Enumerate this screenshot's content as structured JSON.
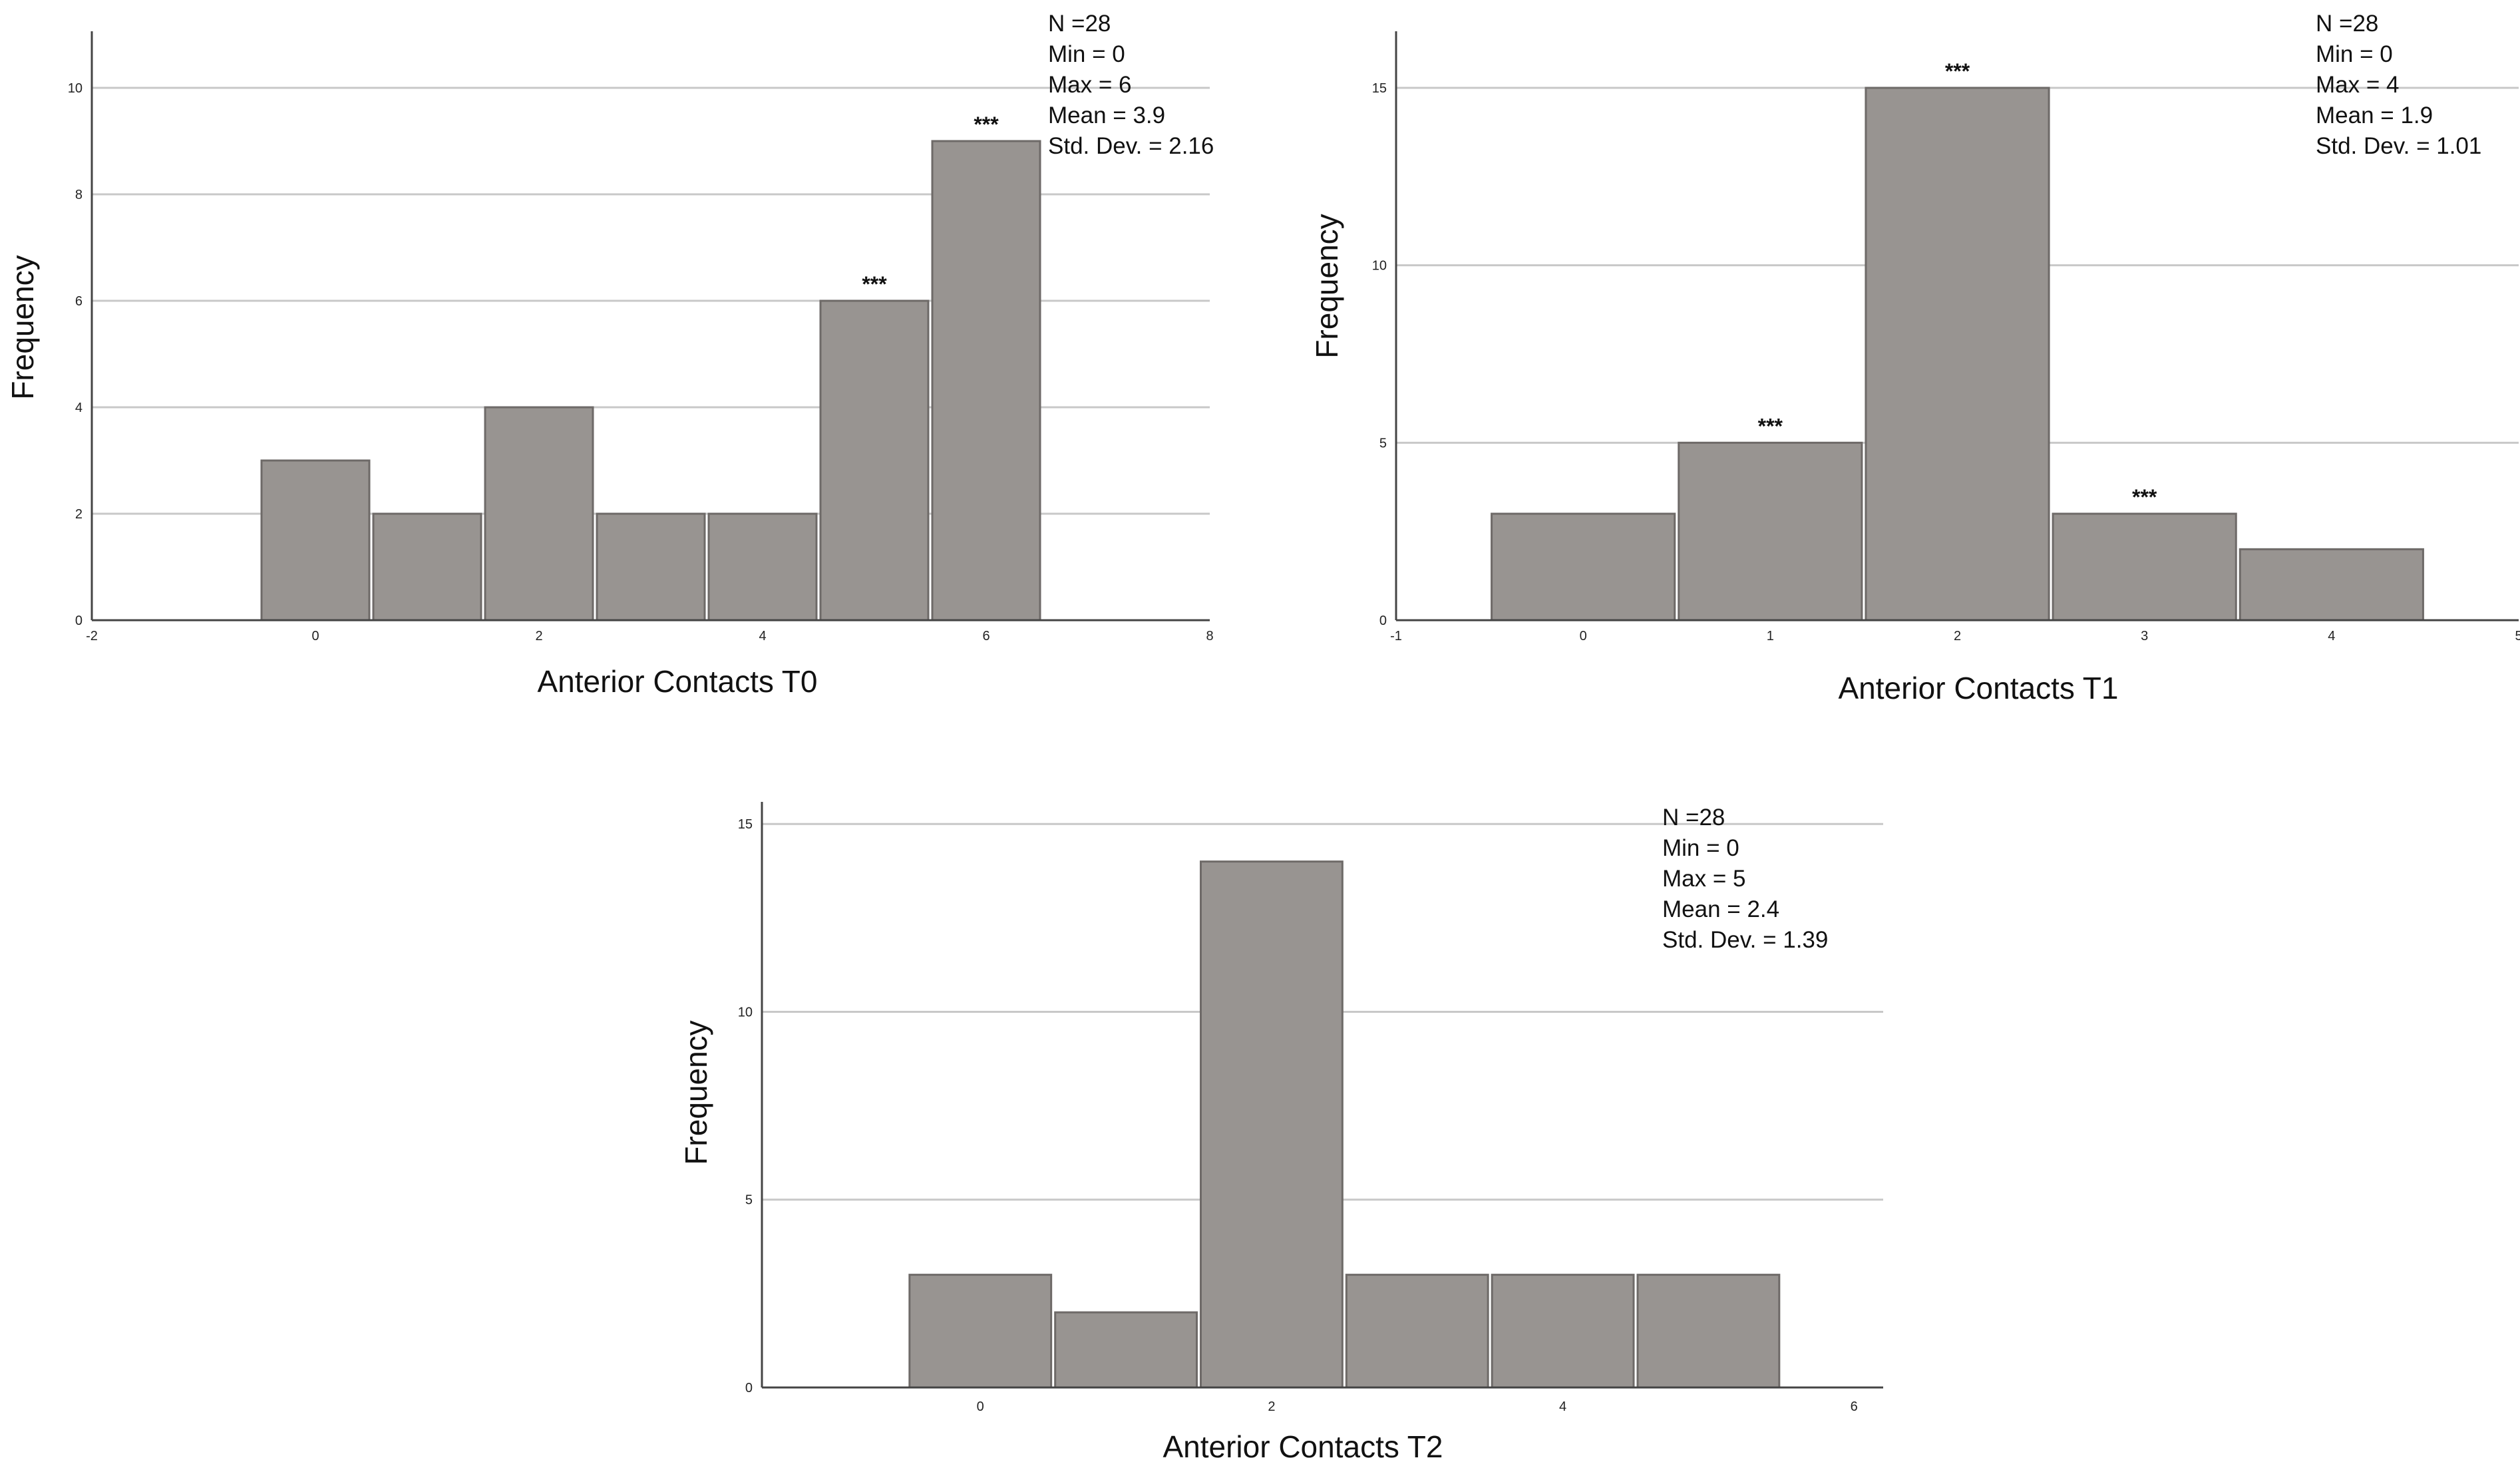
{
  "chart_data": [
    {
      "type": "bar",
      "xlabel": "Anterior Contacts T0",
      "ylabel": "Frequency",
      "xlim": [
        -2,
        8
      ],
      "xticks": [
        -2,
        0,
        2,
        4,
        6,
        8
      ],
      "ylim": [
        0,
        11
      ],
      "yticks": [
        0,
        2,
        4,
        6,
        8,
        10
      ],
      "grid": true,
      "categories": [
        0,
        1,
        2,
        3,
        4,
        5,
        6
      ],
      "values": [
        3,
        2,
        4,
        2,
        2,
        6,
        9
      ],
      "annotations": [
        {
          "category": 5,
          "text": "***"
        },
        {
          "category": 6,
          "text": "***"
        }
      ],
      "stats": [
        "N =28",
        "Min = 0",
        "Max = 6",
        "Mean = 3.9",
        "Std. Dev. = 2.16"
      ],
      "colors": {
        "bar": "#989491",
        "bar_edge": "#6e6a68",
        "grid": "#c8c8c8"
      }
    },
    {
      "type": "bar",
      "xlabel": "Anterior Contacts T1",
      "ylabel": "Frequency",
      "xlim": [
        -1,
        5
      ],
      "xticks": [
        -1,
        0,
        1,
        2,
        3,
        4,
        5
      ],
      "ylim": [
        0,
        16.5
      ],
      "yticks": [
        0,
        5,
        10,
        15
      ],
      "grid": true,
      "categories": [
        0,
        1,
        2,
        3,
        4
      ],
      "values": [
        3,
        5,
        15,
        3,
        2
      ],
      "annotations": [
        {
          "category": 1,
          "text": "***"
        },
        {
          "category": 2,
          "text": "***"
        },
        {
          "category": 3,
          "text": "***"
        }
      ],
      "stats": [
        "N =28",
        "Min = 0",
        "Max = 4",
        "Mean = 1.9",
        "Std. Dev. = 1.01"
      ],
      "colors": {
        "bar": "#989491",
        "bar_edge": "#6e6a68",
        "grid": "#c8c8c8"
      }
    },
    {
      "type": "bar",
      "xlabel": "Anterior Contacts T2",
      "ylabel": "Frequency",
      "xlim": [
        -1.5,
        6.2
      ],
      "xticks": [
        0,
        2,
        4,
        6
      ],
      "ylim": [
        0,
        15.5
      ],
      "yticks": [
        0,
        5,
        10,
        15
      ],
      "grid": true,
      "categories": [
        0,
        1,
        2,
        3,
        4,
        5
      ],
      "values": [
        3,
        2,
        14,
        3,
        3,
        3
      ],
      "annotations": [],
      "stats": [
        "N =28",
        "Min = 0",
        "Max = 5",
        "Mean = 2.4",
        "Std. Dev. = 1.39"
      ],
      "colors": {
        "bar": "#989491",
        "bar_edge": "#6e6a68",
        "grid": "#c8c8c8"
      }
    }
  ]
}
